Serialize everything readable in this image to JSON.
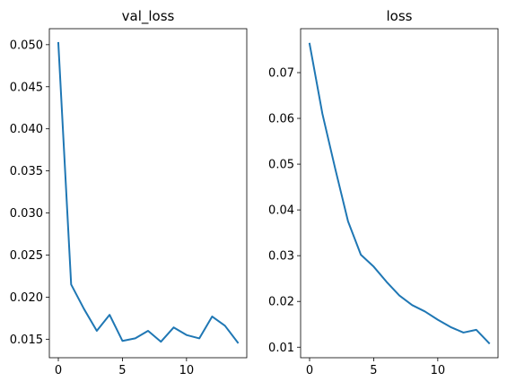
{
  "chart_data": [
    {
      "type": "line",
      "title": "val_loss",
      "xlabel": "",
      "ylabel": "",
      "xlim": [
        -0.7,
        14.7
      ],
      "ylim": [
        0.0128,
        0.0519
      ],
      "xticks": [
        0,
        5,
        10
      ],
      "yticks": [
        0.015,
        0.02,
        0.025,
        0.03,
        0.035,
        0.04,
        0.045,
        0.05
      ],
      "ytick_labels": [
        "0.015",
        "0.020",
        "0.025",
        "0.030",
        "0.035",
        "0.040",
        "0.045",
        "0.050"
      ],
      "grid": false,
      "series": [
        {
          "color": "#1f77b4",
          "x": [
            0,
            1,
            2,
            3,
            4,
            5,
            6,
            7,
            8,
            9,
            10,
            11,
            12,
            13,
            14
          ],
          "y": [
            0.0502,
            0.0215,
            0.0186,
            0.016,
            0.0179,
            0.0148,
            0.0151,
            0.016,
            0.0147,
            0.0164,
            0.0155,
            0.0151,
            0.0177,
            0.0166,
            0.0146
          ]
        }
      ]
    },
    {
      "type": "line",
      "title": "loss",
      "xlabel": "",
      "ylabel": "",
      "xlim": [
        -0.7,
        14.7
      ],
      "ylim": [
        0.0077,
        0.0796
      ],
      "xticks": [
        0,
        5,
        10
      ],
      "yticks": [
        0.01,
        0.02,
        0.03,
        0.04,
        0.05,
        0.06,
        0.07
      ],
      "ytick_labels": [
        "0.01",
        "0.02",
        "0.03",
        "0.04",
        "0.05",
        "0.06",
        "0.07"
      ],
      "grid": false,
      "series": [
        {
          "color": "#1f77b4",
          "x": [
            0,
            1,
            2,
            3,
            4,
            5,
            6,
            7,
            8,
            9,
            10,
            11,
            12,
            13,
            14
          ],
          "y": [
            0.0763,
            0.061,
            0.049,
            0.0375,
            0.0302,
            0.0276,
            0.0243,
            0.0213,
            0.0192,
            0.0178,
            0.016,
            0.0144,
            0.0132,
            0.0138,
            0.0109
          ]
        }
      ]
    }
  ]
}
